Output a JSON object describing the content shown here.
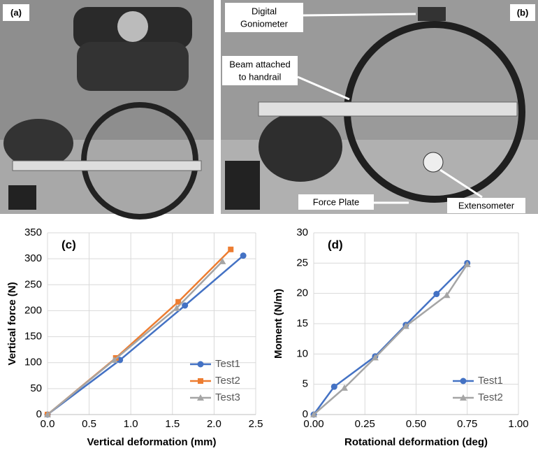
{
  "photos": {
    "a": {
      "label": "(a)"
    },
    "b": {
      "label": "(b)",
      "callouts": [
        {
          "lines": [
            "Digital",
            "Goniometer"
          ]
        },
        {
          "lines": [
            "Beam attached",
            "to handrail"
          ]
        },
        {
          "lines": [
            "Force Plate"
          ]
        },
        {
          "lines": [
            "Extensometer"
          ]
        }
      ]
    }
  },
  "chart_data": [
    {
      "type": "line",
      "annotation": "(c)",
      "x_label": "Vertical deformation (mm)",
      "y_label": "Vertical force (N)",
      "xlim": [
        0,
        2.5
      ],
      "xticks": [
        {
          "value": 0,
          "label": "0.0"
        },
        0.5,
        {
          "value": 1,
          "label": "1.0"
        },
        1.5,
        {
          "value": 2,
          "label": "2.0"
        },
        2.5
      ],
      "ylim": [
        0,
        350
      ],
      "yticks": [
        0,
        50,
        100,
        150,
        200,
        250,
        300,
        350
      ],
      "grid": true,
      "legend": "lower right",
      "series": [
        {
          "name": "Test1",
          "color": "#4472c4",
          "marker": "circle",
          "x": [
            0,
            0.87,
            1.65,
            2.35
          ],
          "values": [
            0,
            105,
            210,
            306
          ]
        },
        {
          "name": "Test2",
          "color": "#ed7d31",
          "marker": "square",
          "x": [
            0,
            0.82,
            1.57,
            2.2
          ],
          "values": [
            0,
            109,
            217,
            318
          ]
        },
        {
          "name": "Test3",
          "color": "#a5a5a5",
          "marker": "triangle",
          "x": [
            0,
            0.8,
            1.55,
            2.1
          ],
          "values": [
            0,
            105,
            205,
            295
          ]
        }
      ]
    },
    {
      "type": "line",
      "annotation": "(d)",
      "x_label": "Rotational deformation (deg)",
      "y_label": "Moment (N/m)",
      "xlim": [
        0,
        1
      ],
      "xticks": [
        {
          "value": 0,
          "label": "0.00"
        },
        0.25,
        {
          "value": 0.5,
          "label": "0.50"
        },
        0.75,
        {
          "value": 1,
          "label": "1.00"
        }
      ],
      "ylim": [
        0,
        30
      ],
      "yticks": [
        0,
        5,
        10,
        15,
        20,
        25,
        30
      ],
      "grid": true,
      "legend": "lower right",
      "series": [
        {
          "name": "Test1",
          "color": "#4472c4",
          "marker": "circle",
          "x": [
            0,
            0.1,
            0.3,
            0.45,
            0.6,
            0.75
          ],
          "values": [
            0,
            4.6,
            9.6,
            14.8,
            19.9,
            25
          ]
        },
        {
          "name": "Test2",
          "color": "#a5a5a5",
          "marker": "triangle",
          "x": [
            0,
            0.15,
            0.3,
            0.45,
            0.65,
            0.75
          ],
          "values": [
            0,
            4.4,
            9.4,
            14.6,
            19.7,
            24.8
          ]
        }
      ]
    }
  ]
}
